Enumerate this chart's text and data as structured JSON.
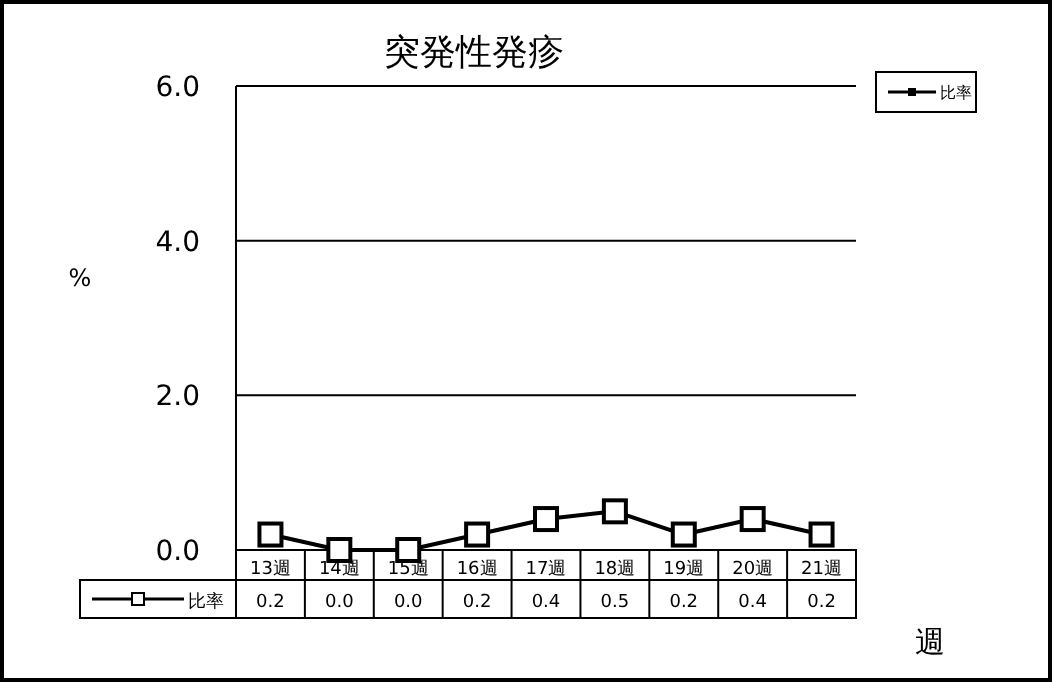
{
  "chart_data": {
    "type": "line",
    "title": "突発性発疹",
    "xlabel": "週",
    "ylabel": "%",
    "categories": [
      "13週",
      "14週",
      "15週",
      "16週",
      "17週",
      "18週",
      "19週",
      "20週",
      "21週"
    ],
    "series": [
      {
        "name": "比率",
        "color": "#000000",
        "values": [
          0.2,
          0.0,
          0.0,
          0.2,
          0.4,
          0.5,
          0.2,
          0.4,
          0.2
        ],
        "value_labels": [
          "0.2",
          "0.0",
          "0.0",
          "0.2",
          "0.4",
          "0.5",
          "0.2",
          "0.4",
          "0.2"
        ]
      }
    ],
    "ylim": [
      0,
      6
    ],
    "yticks": [
      {
        "value": 0,
        "label": "0.0"
      },
      {
        "value": 2,
        "label": "2.0"
      },
      {
        "value": 4,
        "label": "4.0"
      },
      {
        "value": 6,
        "label": "6.0"
      }
    ],
    "grid": "y",
    "legend": "top right",
    "marker": "square",
    "line_style": "solid"
  }
}
